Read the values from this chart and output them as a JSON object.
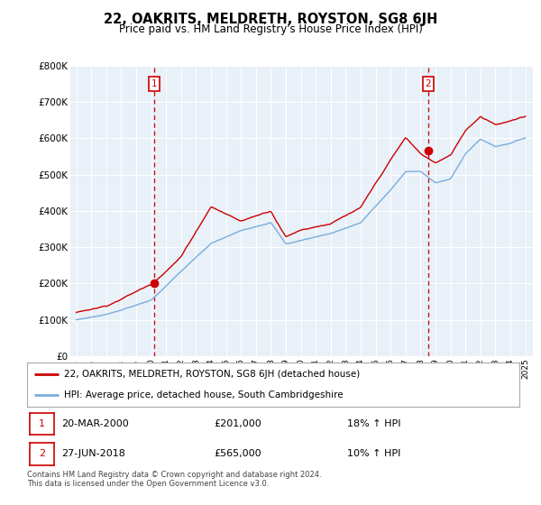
{
  "title": "22, OAKRITS, MELDRETH, ROYSTON, SG8 6JH",
  "subtitle": "Price paid vs. HM Land Registry's House Price Index (HPI)",
  "legend_line1": "22, OAKRITS, MELDRETH, ROYSTON, SG8 6JH (detached house)",
  "legend_line2": "HPI: Average price, detached house, South Cambridgeshire",
  "annotation1_date": "20-MAR-2000",
  "annotation1_price": "£201,000",
  "annotation1_hpi": "18% ↑ HPI",
  "annotation2_date": "27-JUN-2018",
  "annotation2_price": "£565,000",
  "annotation2_hpi": "10% ↑ HPI",
  "footnote": "Contains HM Land Registry data © Crown copyright and database right 2024.\nThis data is licensed under the Open Government Licence v3.0.",
  "house_color": "#cc0000",
  "hpi_color": "#7aaddc",
  "plot_bg_color": "#e8f0f8",
  "grid_color": "#ffffff",
  "ylim": [
    0,
    800000
  ],
  "yticks": [
    0,
    100000,
    200000,
    300000,
    400000,
    500000,
    600000,
    700000,
    800000
  ],
  "ytick_labels": [
    "£0",
    "£100K",
    "£200K",
    "£300K",
    "£400K",
    "£500K",
    "£600K",
    "£700K",
    "£800K"
  ],
  "sale1_year": 2000.22,
  "sale1_price": 201000,
  "sale2_year": 2018.49,
  "sale2_price": 565000
}
